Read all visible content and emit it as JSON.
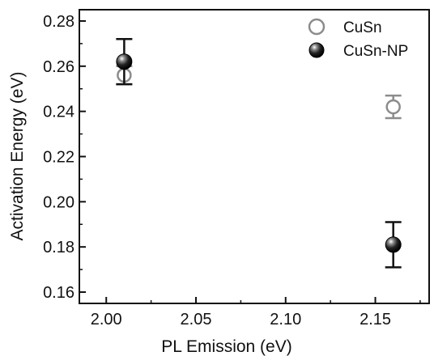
{
  "chart_data": {
    "type": "scatter",
    "xlabel": "PL Emission (eV)",
    "ylabel": "Activation Energy (eV)",
    "xlim": [
      1.985,
      2.18
    ],
    "ylim": [
      0.155,
      0.285
    ],
    "x_ticks": [
      2.0,
      2.05,
      2.1,
      2.15
    ],
    "x_tick_labels": [
      "2.00",
      "2.05",
      "2.10",
      "2.15"
    ],
    "y_ticks": [
      0.16,
      0.18,
      0.2,
      0.22,
      0.24,
      0.26,
      0.28
    ],
    "y_tick_labels": [
      "0.16",
      "0.18",
      "0.20",
      "0.22",
      "0.24",
      "0.26",
      "0.28"
    ],
    "grid": false,
    "legend_position": "top-right",
    "series": [
      {
        "name": "CuSn",
        "marker": "open-circle",
        "color": "#8c8c8c",
        "points": [
          {
            "x": 2.01,
            "y": 0.256,
            "err": 0.004
          },
          {
            "x": 2.16,
            "y": 0.242,
            "err": 0.005
          }
        ]
      },
      {
        "name": "CuSn-NP",
        "marker": "filled-sphere",
        "color": "#111111",
        "points": [
          {
            "x": 2.01,
            "y": 0.262,
            "err": 0.01
          },
          {
            "x": 2.16,
            "y": 0.181,
            "err": 0.01
          }
        ]
      }
    ]
  }
}
